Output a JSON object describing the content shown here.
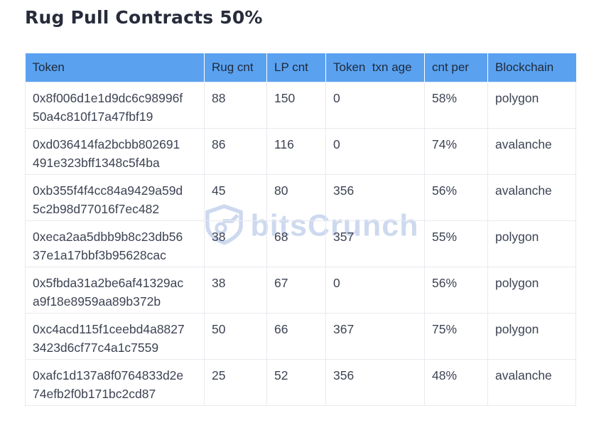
{
  "page": {
    "title": "Rug Pull Contracts 50%"
  },
  "watermark": {
    "brand": "bitsCrunch"
  },
  "colors": {
    "header_bg": "#5aa2f0",
    "header_text": "#202a3b",
    "cell_text": "#3d4353",
    "grid_border": "#e9e9f0",
    "title_text": "#272b3a",
    "watermark": "#cdd9ef"
  },
  "chart_data": {
    "type": "table",
    "title": "Rug Pull Contracts 50%",
    "columns": [
      "Token",
      "Rug cnt",
      "LP cnt",
      "Token  txn age",
      "cnt per",
      "Blockchain"
    ],
    "rows": [
      {
        "token": "0x8f006d1e1d9dc6c98996f50a4c810f17a47fbf19",
        "rug_cnt": "88",
        "lp_cnt": "150",
        "token_txn_age": "0",
        "cnt_per": "58%",
        "blockchain": "polygon"
      },
      {
        "token": "0xd036414fa2bcbb802691491e323bff1348c5f4ba",
        "rug_cnt": "86",
        "lp_cnt": "116",
        "token_txn_age": "0",
        "cnt_per": "74%",
        "blockchain": "avalanche"
      },
      {
        "token": "0xb355f4f4cc84a9429a59d5c2b98d77016f7ec482",
        "rug_cnt": "45",
        "lp_cnt": "80",
        "token_txn_age": "356",
        "cnt_per": "56%",
        "blockchain": "avalanche"
      },
      {
        "token": "0xeca2aa5dbb9b8c23db5637e1a17bbf3b95628cac",
        "rug_cnt": "38",
        "lp_cnt": "68",
        "token_txn_age": "357",
        "cnt_per": "55%",
        "blockchain": "polygon"
      },
      {
        "token": "0x5fbda31a2be6af41329aca9f18e8959aa89b372b",
        "rug_cnt": "38",
        "lp_cnt": "67",
        "token_txn_age": "0",
        "cnt_per": "56%",
        "blockchain": "polygon"
      },
      {
        "token": "0xc4acd115f1ceebd4a88273423d6cf77c4a1c7559",
        "rug_cnt": "50",
        "lp_cnt": "66",
        "token_txn_age": "367",
        "cnt_per": "75%",
        "blockchain": "polygon"
      },
      {
        "token": "0xafc1d137a8f0764833d2e74efb2f0b171bc2cd87",
        "rug_cnt": "25",
        "lp_cnt": "52",
        "token_txn_age": "356",
        "cnt_per": "48%",
        "blockchain": "avalanche"
      }
    ]
  }
}
